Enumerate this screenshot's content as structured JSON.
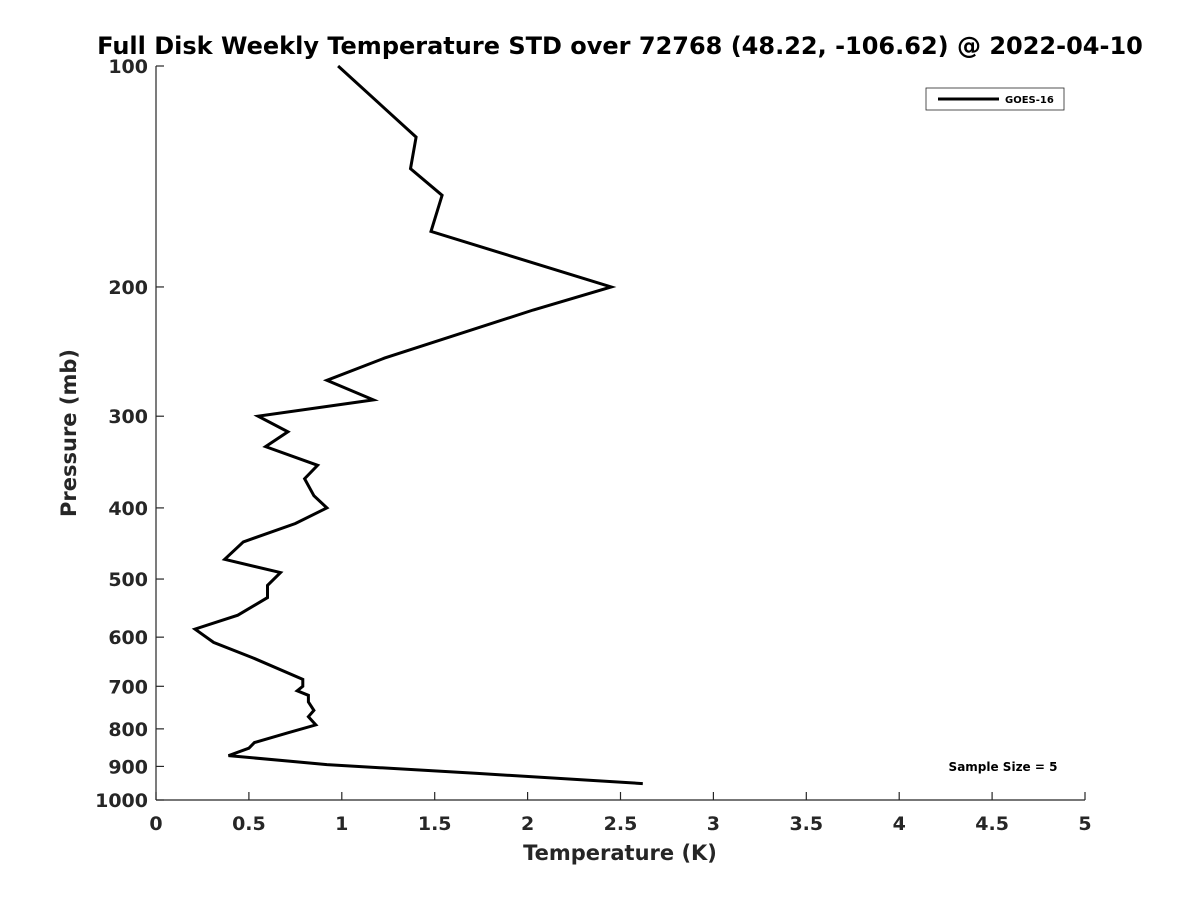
{
  "chart_data": {
    "type": "line",
    "title": "Full Disk Weekly Temperature STD over 72768 (48.22, -106.62) @ 2022-04-10",
    "xlabel": "Temperature (K)",
    "ylabel": "Pressure (mb)",
    "xlim": [
      0,
      5
    ],
    "ylim": [
      100,
      1000
    ],
    "y_scale": "log",
    "y_reversed": true,
    "grid": false,
    "legend_position": "top-right",
    "x_ticks": [
      "0",
      "0.5",
      "1",
      "1.5",
      "2",
      "2.5",
      "3",
      "3.5",
      "4",
      "4.5",
      "5"
    ],
    "y_ticks": [
      "100",
      "200",
      "300",
      "400",
      "500",
      "600",
      "700",
      "800",
      "900",
      "1000"
    ],
    "series": [
      {
        "name": "GOES-16",
        "color": "#000000",
        "x": [
          0.98,
          1.4,
          1.37,
          1.54,
          1.48,
          2.45,
          2.03,
          1.23,
          0.92,
          1.17,
          0.55,
          0.71,
          0.59,
          0.87,
          0.8,
          0.85,
          0.92,
          0.75,
          0.47,
          0.37,
          0.67,
          0.6,
          0.6,
          0.44,
          0.21,
          0.31,
          0.52,
          0.79,
          0.79,
          0.76,
          0.82,
          0.82,
          0.85,
          0.82,
          0.86,
          0.71,
          0.53,
          0.5,
          0.39,
          0.92,
          1.73,
          2.62
        ],
        "y": [
          100,
          125,
          138,
          150,
          168,
          200,
          215,
          250,
          268,
          285,
          300,
          315,
          330,
          350,
          365,
          385,
          400,
          420,
          445,
          470,
          490,
          510,
          530,
          560,
          585,
          610,
          640,
          685,
          700,
          710,
          720,
          735,
          755,
          770,
          790,
          810,
          835,
          850,
          870,
          895,
          920,
          950
        ]
      }
    ],
    "annotations": [
      "Sample Size = 5"
    ]
  }
}
